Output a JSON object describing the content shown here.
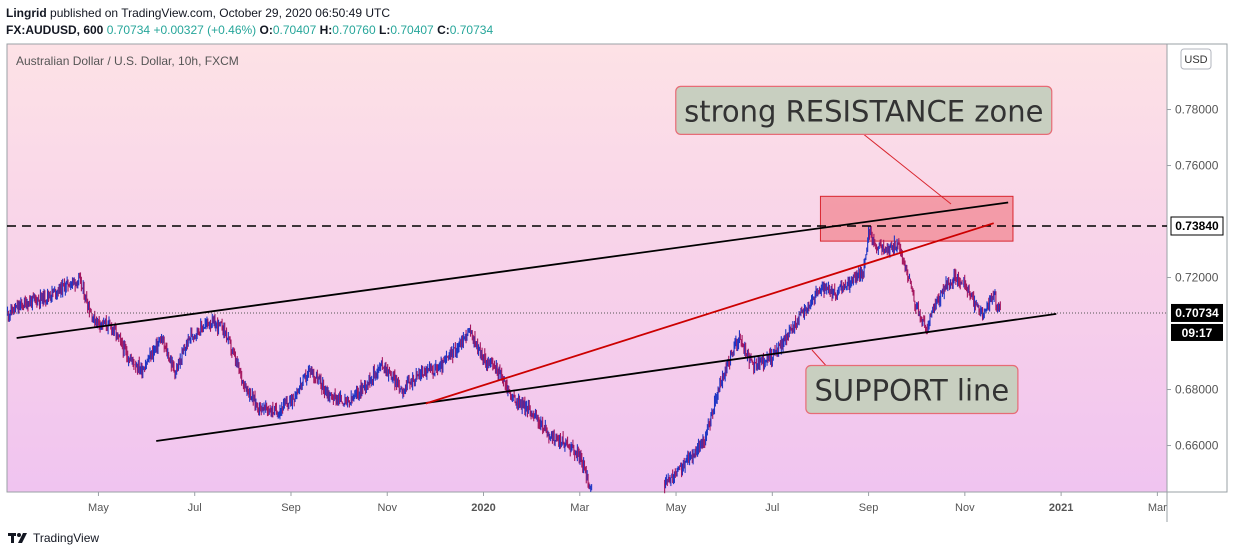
{
  "header": {
    "author": "Lingrid",
    "published_text": "published on TradingView.com, October 29, 2020 06:50:49 UTC",
    "symbol": "FX:AUDUSD, 600",
    "last": "0.70734",
    "change": "+0.00327 (+0.46%)",
    "o_label": "O:",
    "o_value": "0.70407",
    "h_label": "H:",
    "h_value": "0.70760",
    "l_label": "L:",
    "l_value": "0.70407",
    "c_label": "C:",
    "c_value": "0.70734"
  },
  "footer": {
    "brand": "TradingView"
  },
  "chart_data": {
    "type": "candlestick",
    "title": "Australian Dollar / U.S. Dollar, 10h, FXCM",
    "currency": "USD",
    "y_ticks": [
      "0.78000",
      "0.76000",
      "0.72000",
      "0.68000",
      "0.66000"
    ],
    "x_ticks": [
      {
        "label": "May",
        "t": 0.0
      },
      {
        "label": "Jul",
        "t": 2.0
      },
      {
        "label": "Sep",
        "t": 4.0
      },
      {
        "label": "Nov",
        "t": 6.0
      },
      {
        "label": "2020",
        "t": 8.0
      },
      {
        "label": "Mar",
        "t": 10.0
      },
      {
        "label": "May",
        "t": 12.0
      },
      {
        "label": "Jul",
        "t": 14.0
      },
      {
        "label": "Sep",
        "t": 16.0
      },
      {
        "label": "Nov",
        "t": 18.0
      },
      {
        "label": "2021",
        "t": 20.0
      },
      {
        "label": "Mar",
        "t": 22.0
      }
    ],
    "ylim": [
      0.6434,
      0.8034
    ],
    "xlim": [
      -1.9,
      22.2
    ],
    "grid": false,
    "price_path": [
      [
        -1.9,
        0.707
      ],
      [
        -1.5,
        0.711
      ],
      [
        -1.1,
        0.713
      ],
      [
        -0.6,
        0.718
      ],
      [
        -0.4,
        0.719
      ],
      [
        -0.1,
        0.705
      ],
      [
        0.3,
        0.702
      ],
      [
        0.6,
        0.692
      ],
      [
        0.9,
        0.687
      ],
      [
        1.3,
        0.698
      ],
      [
        1.6,
        0.686
      ],
      [
        1.9,
        0.699
      ],
      [
        2.3,
        0.704
      ],
      [
        2.6,
        0.702
      ],
      [
        3.0,
        0.683
      ],
      [
        3.3,
        0.674
      ],
      [
        3.7,
        0.672
      ],
      [
        4.0,
        0.676
      ],
      [
        4.4,
        0.687
      ],
      [
        4.8,
        0.678
      ],
      [
        5.2,
        0.675
      ],
      [
        5.6,
        0.683
      ],
      [
        5.9,
        0.689
      ],
      [
        6.3,
        0.68
      ],
      [
        6.7,
        0.686
      ],
      [
        7.1,
        0.688
      ],
      [
        7.5,
        0.696
      ],
      [
        7.7,
        0.701
      ],
      [
        8.0,
        0.691
      ],
      [
        8.3,
        0.687
      ],
      [
        8.6,
        0.677
      ],
      [
        9.0,
        0.672
      ],
      [
        9.4,
        0.663
      ],
      [
        9.8,
        0.66
      ],
      [
        10.0,
        0.656
      ],
      [
        10.2,
        0.646
      ],
      [
        11.8,
        0.646
      ],
      [
        12.2,
        0.654
      ],
      [
        12.6,
        0.662
      ],
      [
        12.9,
        0.681
      ],
      [
        13.3,
        0.699
      ],
      [
        13.6,
        0.688
      ],
      [
        14.0,
        0.692
      ],
      [
        14.3,
        0.699
      ],
      [
        14.7,
        0.709
      ],
      [
        15.0,
        0.716
      ],
      [
        15.3,
        0.714
      ],
      [
        15.6,
        0.718
      ],
      [
        15.9,
        0.723
      ],
      [
        16.0,
        0.736
      ],
      [
        16.2,
        0.731
      ],
      [
        16.4,
        0.73
      ],
      [
        16.6,
        0.732
      ],
      [
        16.8,
        0.722
      ],
      [
        17.0,
        0.709
      ],
      [
        17.2,
        0.701
      ],
      [
        17.4,
        0.711
      ],
      [
        17.6,
        0.717
      ],
      [
        17.8,
        0.72
      ],
      [
        18.0,
        0.718
      ],
      [
        18.2,
        0.71
      ],
      [
        18.4,
        0.707
      ],
      [
        18.6,
        0.714
      ],
      [
        18.75,
        0.7073
      ]
    ],
    "current_price": {
      "value": 0.70734,
      "label": "0.70734",
      "countdown": "09:17"
    },
    "horizontal_level": {
      "value": 0.7384,
      "label": "0.73840"
    },
    "trendlines": [
      {
        "name": "upper-channel-line",
        "color": "#000000",
        "from": [
          -1.7,
          0.6984
        ],
        "to": [
          18.9,
          0.7468
        ]
      },
      {
        "name": "support-line",
        "color": "#000000",
        "from": [
          1.2,
          0.6616
        ],
        "to": [
          19.9,
          0.707
        ]
      },
      {
        "name": "red-trend-line",
        "color": "#cc0000",
        "from": [
          6.8,
          0.675
        ],
        "to": [
          18.6,
          0.7394
        ]
      }
    ],
    "resistance_zone": {
      "t_from": 15.0,
      "t_to": 19.0,
      "y_from": 0.733,
      "y_to": 0.749
    },
    "annotations": [
      {
        "name": "resistance-label",
        "text": "strong RESISTANCE zone",
        "anchor_t": 15.9,
        "anchor_y": 0.7797
      },
      {
        "name": "support-label",
        "text": "SUPPORT line",
        "anchor_t": 16.9,
        "anchor_y": 0.68
      }
    ]
  }
}
